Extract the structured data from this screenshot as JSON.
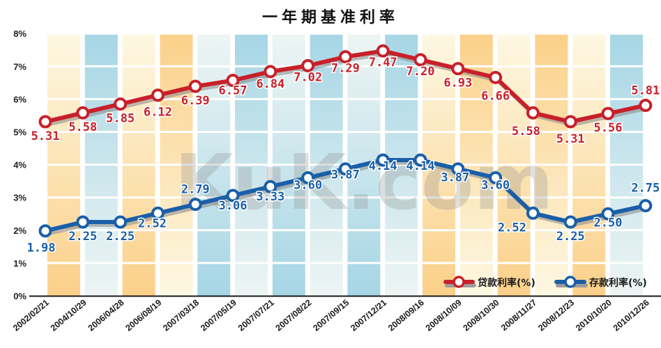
{
  "chart_data": {
    "type": "line",
    "title": "一年期基准利率",
    "xlabel": "",
    "ylabel": "",
    "ylim": [
      0,
      8
    ],
    "yticks": [
      "0%",
      "1%",
      "2%",
      "3%",
      "4%",
      "5%",
      "6%",
      "7%",
      "8%"
    ],
    "grid": true,
    "legend_position": "bottom-right",
    "categories": [
      "2002/02/21",
      "2004/10/29",
      "2006/04/28",
      "2006/08/19",
      "2007/03/18",
      "2007/05/19",
      "2007/07/21",
      "2007/08/22",
      "2007/09/15",
      "2007/12/21",
      "2008/09/16",
      "2008/10/09",
      "2008/10/30",
      "2008/11/27",
      "2008/12/23",
      "2010/10/20",
      "2010/12/26"
    ],
    "series": [
      {
        "name": "贷款利率(%)",
        "color": "#c8202a",
        "values": [
          5.31,
          5.58,
          5.85,
          6.12,
          6.39,
          6.57,
          6.84,
          7.02,
          7.29,
          7.47,
          7.2,
          6.93,
          6.66,
          5.58,
          5.31,
          5.56,
          5.81
        ]
      },
      {
        "name": "存款利率(%)",
        "color": "#1a5fa8",
        "values": [
          1.98,
          2.25,
          2.25,
          2.52,
          2.79,
          3.06,
          3.33,
          3.6,
          3.87,
          4.14,
          4.14,
          3.87,
          3.6,
          2.52,
          2.25,
          2.5,
          2.75
        ]
      }
    ],
    "labels": {
      "loan": [
        "5.31",
        "5.58",
        "5.85",
        "6.12",
        "6.39",
        "6.57",
        "6.84",
        "7.02",
        "7.29",
        "7.47",
        "7.20",
        "6.93",
        "6.66",
        "5.58",
        "5.31",
        "5.56",
        "5.81"
      ],
      "deposit": [
        "1.98",
        "2.25",
        "2.25",
        "2.52",
        "2.79",
        "3.06",
        "3.33",
        "3.60",
        "3.87",
        "4.14",
        "4.14",
        "3.87",
        "3.60",
        "2.52",
        "2.25",
        "2.50",
        "2.75"
      ]
    },
    "annotations": [
      "kuk.com watermark"
    ]
  },
  "watermark": "KuK.com",
  "colors": {
    "loan": "#c8202a",
    "deposit": "#1a5fa8",
    "band_orange": "#fbd48f",
    "band_cream": "#fdf6dc",
    "band_blue": "#a9d7e6",
    "band_light": "#eef5f5"
  }
}
